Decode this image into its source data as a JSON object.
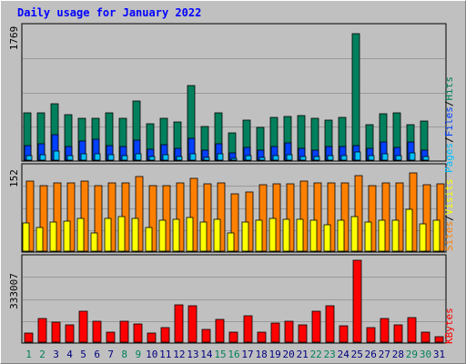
{
  "title": "Daily usage for January 2022",
  "colors": {
    "hits": "#00805c",
    "files": "#0040ff",
    "pages": "#00c0ff",
    "visits": "#ffff00",
    "sites": "#ff8000",
    "kbytes": "#ff0000",
    "weekend_label": "#00805c",
    "weekday_label": "#000080"
  },
  "legends": {
    "top": {
      "pages": "Pages",
      "sep1": "/",
      "files": "Files",
      "sep2": "/",
      "hits": "Hits"
    },
    "middle": {
      "sites": "Sites",
      "sep": "/",
      "visits": "Visits"
    },
    "bottom": {
      "kbytes": "KBytes"
    }
  },
  "chart_data": [
    {
      "type": "bar",
      "panel": "hits-files-pages",
      "categories": [
        "1",
        "2",
        "3",
        "4",
        "5",
        "6",
        "7",
        "8",
        "9",
        "10",
        "11",
        "12",
        "13",
        "14",
        "15",
        "16",
        "17",
        "18",
        "19",
        "20",
        "21",
        "22",
        "23",
        "24",
        "25",
        "26",
        "27",
        "28",
        "29",
        "30",
        "31"
      ],
      "ymax_label": "1769",
      "ylim": [
        0,
        1769
      ],
      "series": [
        {
          "name": "Hits",
          "values": [
            640,
            630,
            760,
            610,
            560,
            560,
            640,
            560,
            790,
            490,
            560,
            510,
            1000,
            450,
            640,
            360,
            540,
            440,
            570,
            590,
            600,
            560,
            540,
            570,
            1700,
            470,
            620,
            640,
            480,
            530,
            0
          ]
        },
        {
          "name": "Files",
          "values": [
            200,
            220,
            340,
            180,
            260,
            280,
            200,
            180,
            270,
            150,
            210,
            160,
            290,
            140,
            220,
            100,
            170,
            140,
            180,
            230,
            160,
            140,
            180,
            180,
            200,
            160,
            250,
            170,
            240,
            130,
            0
          ]
        },
        {
          "name": "Pages",
          "values": [
            60,
            70,
            120,
            60,
            90,
            80,
            70,
            60,
            80,
            50,
            70,
            50,
            90,
            40,
            80,
            30,
            60,
            40,
            60,
            70,
            50,
            50,
            60,
            60,
            110,
            60,
            80,
            60,
            100,
            50,
            0
          ]
        }
      ]
    },
    {
      "type": "bar",
      "panel": "sites-visits",
      "categories": [
        "1",
        "2",
        "3",
        "4",
        "5",
        "6",
        "7",
        "8",
        "9",
        "10",
        "11",
        "12",
        "13",
        "14",
        "15",
        "16",
        "17",
        "18",
        "19",
        "20",
        "21",
        "22",
        "23",
        "24",
        "25",
        "26",
        "27",
        "28",
        "29",
        "30",
        "31"
      ],
      "ymax_label": "152",
      "ylim": [
        0,
        152
      ],
      "series": [
        {
          "name": "Sites",
          "values": [
            129,
            120,
            126,
            126,
            129,
            121,
            125,
            125,
            137,
            121,
            121,
            126,
            133,
            123,
            126,
            105,
            108,
            122,
            124,
            124,
            128,
            126,
            125,
            126,
            139,
            120,
            125,
            126,
            144,
            122,
            123
          ]
        },
        {
          "name": "Visits",
          "values": [
            52,
            43,
            53,
            55,
            60,
            34,
            60,
            64,
            60,
            44,
            56,
            58,
            62,
            54,
            58,
            34,
            54,
            56,
            60,
            59,
            58,
            56,
            48,
            57,
            64,
            54,
            56,
            56,
            76,
            50,
            57
          ]
        }
      ]
    },
    {
      "type": "bar",
      "panel": "kbytes",
      "categories": [
        "1",
        "2",
        "3",
        "4",
        "5",
        "6",
        "7",
        "8",
        "9",
        "10",
        "11",
        "12",
        "13",
        "14",
        "15",
        "16",
        "17",
        "18",
        "19",
        "20",
        "21",
        "22",
        "23",
        "24",
        "25",
        "26",
        "27",
        "28",
        "29",
        "30",
        "31"
      ],
      "ymax_label": "333007",
      "ylim": [
        0,
        333007
      ],
      "series": [
        {
          "name": "KBytes",
          "values": [
            35000,
            95000,
            80000,
            70000,
            125000,
            85000,
            40000,
            85000,
            75000,
            38000,
            60000,
            150000,
            145000,
            50000,
            90000,
            40000,
            105000,
            42000,
            78000,
            85000,
            70000,
            125000,
            145000,
            65000,
            330000,
            60000,
            95000,
            70000,
            100000,
            40000,
            22000
          ]
        }
      ]
    }
  ]
}
